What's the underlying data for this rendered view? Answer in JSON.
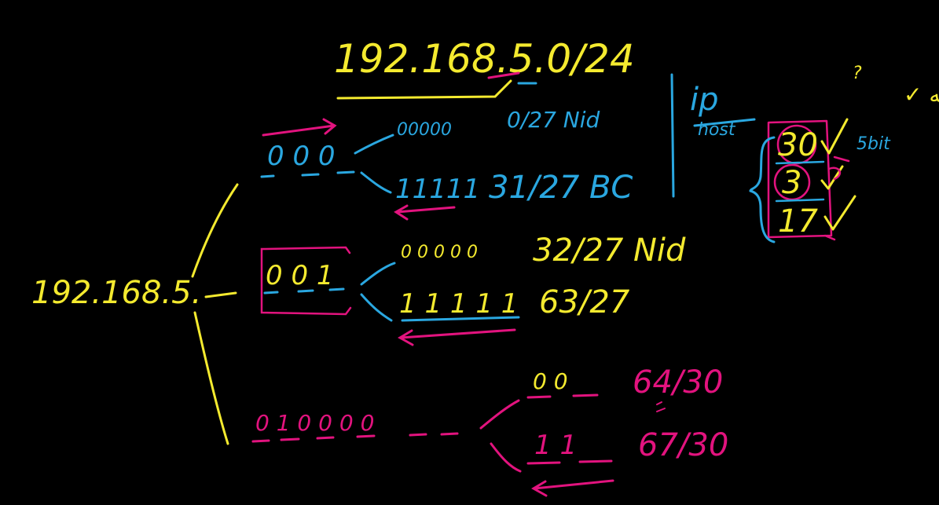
{
  "colors": {
    "background": "#000000",
    "yellow": "#f4ea2f",
    "cyan": "#2aa7e0",
    "magenta": "#e2137e"
  },
  "notes": {
    "title": "192.168.5.0/24",
    "root_prefix": "192.168.5.",
    "branch_a": {
      "bits": "0 0 0",
      "zeros": "00000",
      "ones": "11111",
      "network_label": "0/27 Nid",
      "broadcast_label": "31/27 BC"
    },
    "branch_b": {
      "bits": "0 0 1",
      "zeros": "0 0 0 0 0",
      "ones": "1 1 1 1 1",
      "network_label": "32/27 Nid",
      "broadcast_label": "63/27"
    },
    "branch_c": {
      "bits": "0 1 0 0 0 0",
      "zeros": "0 0",
      "ones": "1 1",
      "network_label": "64/30",
      "broadcast_label": "67/30"
    },
    "side": {
      "ip": "ip",
      "host_struck": "host",
      "arabic_note": "سه شبکه ✓",
      "question_mark": "?",
      "bit_note": "5bit",
      "counts": [
        "30",
        "3",
        "17"
      ]
    }
  }
}
